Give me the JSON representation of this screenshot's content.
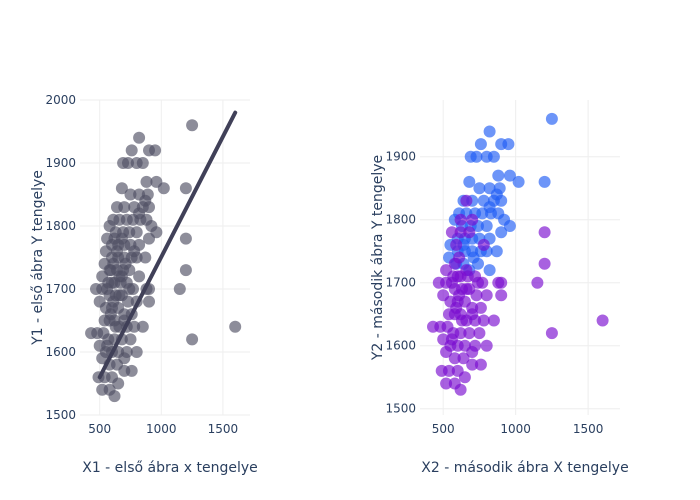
{
  "chart_data": [
    {
      "type": "scatter",
      "xlabel": "X1 - első ábra x tengelye",
      "ylabel": "Y1 - első ábra Y tengelye",
      "xlim": [
        340,
        1720
      ],
      "ylim": [
        1500,
        2000
      ],
      "xticks": [
        500,
        1000,
        1500
      ],
      "yticks": [
        1500,
        1600,
        1700,
        1800,
        1900,
        2000
      ],
      "grid": true,
      "trend_line": {
        "x": [
          500,
          1600
        ],
        "y": [
          1560,
          1980
        ],
        "color": "#404058"
      },
      "series": [
        {
          "color": "#505064",
          "points": [
            [
              1250,
              1960
            ],
            [
              820,
              1940
            ],
            [
              690,
              1900
            ],
            [
              730,
              1900
            ],
            [
              800,
              1900
            ],
            [
              850,
              1900
            ],
            [
              900,
              1920
            ],
            [
              950,
              1920
            ],
            [
              760,
              1920
            ],
            [
              880,
              1870
            ],
            [
              960,
              1870
            ],
            [
              1020,
              1860
            ],
            [
              1200,
              1860
            ],
            [
              680,
              1860
            ],
            [
              750,
              1850
            ],
            [
              820,
              1850
            ],
            [
              890,
              1850
            ],
            [
              870,
              1840
            ],
            [
              640,
              1830
            ],
            [
              700,
              1830
            ],
            [
              780,
              1830
            ],
            [
              850,
              1830
            ],
            [
              900,
              1830
            ],
            [
              820,
              1820
            ],
            [
              610,
              1810
            ],
            [
              660,
              1810
            ],
            [
              720,
              1810
            ],
            [
              770,
              1810
            ],
            [
              830,
              1810
            ],
            [
              880,
              1810
            ],
            [
              920,
              1800
            ],
            [
              580,
              1800
            ],
            [
              630,
              1790
            ],
            [
              690,
              1790
            ],
            [
              740,
              1790
            ],
            [
              800,
              1790
            ],
            [
              960,
              1790
            ],
            [
              1200,
              1780
            ],
            [
              560,
              1780
            ],
            [
              600,
              1770
            ],
            [
              650,
              1770
            ],
            [
              700,
              1770
            ],
            [
              750,
              1770
            ],
            [
              820,
              1770
            ],
            [
              900,
              1780
            ],
            [
              550,
              1760
            ],
            [
              600,
              1750
            ],
            [
              650,
              1750
            ],
            [
              700,
              1750
            ],
            [
              760,
              1750
            ],
            [
              800,
              1750
            ],
            [
              870,
              1750
            ],
            [
              540,
              1740
            ],
            [
              590,
              1730
            ],
            [
              640,
              1730
            ],
            [
              690,
              1730
            ],
            [
              740,
              1730
            ],
            [
              820,
              1720
            ],
            [
              1200,
              1730
            ],
            [
              520,
              1720
            ],
            [
              570,
              1710
            ],
            [
              620,
              1710
            ],
            [
              670,
              1710
            ],
            [
              720,
              1710
            ],
            [
              770,
              1700
            ],
            [
              880,
              1700
            ],
            [
              1150,
              1700
            ],
            [
              470,
              1700
            ],
            [
              520,
              1700
            ],
            [
              580,
              1690
            ],
            [
              630,
              1690
            ],
            [
              680,
              1690
            ],
            [
              730,
              1680
            ],
            [
              800,
              1680
            ],
            [
              900,
              1680
            ],
            [
              500,
              1680
            ],
            [
              550,
              1670
            ],
            [
              600,
              1670
            ],
            [
              650,
              1670
            ],
            [
              700,
              1660
            ],
            [
              760,
              1660
            ],
            [
              540,
              1650
            ],
            [
              580,
              1650
            ],
            [
              620,
              1650
            ],
            [
              660,
              1640
            ],
            [
              720,
              1640
            ],
            [
              780,
              1640
            ],
            [
              850,
              1640
            ],
            [
              1600,
              1640
            ],
            [
              430,
              1630
            ],
            [
              480,
              1630
            ],
            [
              530,
              1630
            ],
            [
              570,
              1620
            ],
            [
              620,
              1620
            ],
            [
              680,
              1620
            ],
            [
              750,
              1620
            ],
            [
              1250,
              1620
            ],
            [
              500,
              1610
            ],
            [
              550,
              1600
            ],
            [
              600,
              1600
            ],
            [
              650,
              1600
            ],
            [
              720,
              1600
            ],
            [
              800,
              1600
            ],
            [
              520,
              1590
            ],
            [
              580,
              1580
            ],
            [
              640,
              1580
            ],
            [
              700,
              1570
            ],
            [
              760,
              1570
            ],
            [
              490,
              1560
            ],
            [
              540,
              1560
            ],
            [
              600,
              1560
            ],
            [
              650,
              1550
            ],
            [
              520,
              1540
            ],
            [
              580,
              1540
            ],
            [
              620,
              1530
            ],
            [
              700,
              1590
            ],
            [
              900,
              1700
            ],
            [
              560,
              1700
            ],
            [
              610,
              1680
            ],
            [
              660,
              1720
            ],
            [
              710,
              1740
            ],
            [
              600,
              1710
            ],
            [
              640,
              1760
            ],
            [
              680,
              1720
            ],
            [
              590,
              1660
            ],
            [
              630,
              1640
            ],
            [
              560,
              1610
            ],
            [
              680,
              1780
            ],
            [
              740,
              1700
            ],
            [
              780,
              1760
            ],
            [
              610,
              1740
            ],
            [
              660,
              1690
            ],
            [
              700,
              1650
            ],
            [
              580,
              1730
            ],
            [
              620,
              1780
            ]
          ]
        }
      ]
    },
    {
      "type": "scatter",
      "xlabel": "X2 - második ábra X tengelye",
      "ylabel": "Y2 - második ábra Y tengelye",
      "xlim": [
        340,
        1720
      ],
      "ylim": [
        1490,
        1990
      ],
      "xticks": [
        500,
        1000,
        1500
      ],
      "yticks": [
        1500,
        1600,
        1700,
        1800,
        1900
      ],
      "grid": true,
      "series": [
        {
          "color": "#1f5cf5",
          "points": [
            [
              1250,
              1960
            ],
            [
              820,
              1940
            ],
            [
              690,
              1900
            ],
            [
              730,
              1900
            ],
            [
              800,
              1900
            ],
            [
              850,
              1900
            ],
            [
              900,
              1920
            ],
            [
              950,
              1920
            ],
            [
              760,
              1920
            ],
            [
              880,
              1870
            ],
            [
              960,
              1870
            ],
            [
              1020,
              1860
            ],
            [
              1200,
              1860
            ],
            [
              680,
              1860
            ],
            [
              750,
              1850
            ],
            [
              820,
              1850
            ],
            [
              890,
              1850
            ],
            [
              870,
              1840
            ],
            [
              640,
              1830
            ],
            [
              700,
              1830
            ],
            [
              780,
              1830
            ],
            [
              850,
              1830
            ],
            [
              900,
              1830
            ],
            [
              820,
              1820
            ],
            [
              610,
              1810
            ],
            [
              660,
              1810
            ],
            [
              720,
              1810
            ],
            [
              770,
              1810
            ],
            [
              830,
              1810
            ],
            [
              880,
              1810
            ],
            [
              920,
              1800
            ],
            [
              580,
              1800
            ],
            [
              630,
              1790
            ],
            [
              690,
              1790
            ],
            [
              740,
              1790
            ],
            [
              800,
              1790
            ],
            [
              960,
              1790
            ],
            [
              600,
              1770
            ],
            [
              650,
              1770
            ],
            [
              700,
              1770
            ],
            [
              750,
              1770
            ],
            [
              820,
              1770
            ],
            [
              900,
              1780
            ],
            [
              550,
              1760
            ],
            [
              600,
              1750
            ],
            [
              650,
              1750
            ],
            [
              700,
              1750
            ],
            [
              760,
              1750
            ],
            [
              800,
              1750
            ],
            [
              870,
              1750
            ],
            [
              540,
              1740
            ],
            [
              590,
              1730
            ],
            [
              640,
              1730
            ],
            [
              740,
              1730
            ],
            [
              820,
              1720
            ],
            [
              680,
              1720
            ],
            [
              640,
              1760
            ],
            [
              710,
              1740
            ]
          ]
        },
        {
          "color": "#7a0ccf",
          "points": [
            [
              1200,
              1780
            ],
            [
              560,
              1780
            ],
            [
              1200,
              1730
            ],
            [
              520,
              1720
            ],
            [
              570,
              1710
            ],
            [
              620,
              1710
            ],
            [
              670,
              1710
            ],
            [
              720,
              1710
            ],
            [
              770,
              1700
            ],
            [
              880,
              1700
            ],
            [
              1150,
              1700
            ],
            [
              470,
              1700
            ],
            [
              520,
              1700
            ],
            [
              580,
              1690
            ],
            [
              630,
              1690
            ],
            [
              680,
              1690
            ],
            [
              730,
              1680
            ],
            [
              800,
              1680
            ],
            [
              900,
              1680
            ],
            [
              500,
              1680
            ],
            [
              550,
              1670
            ],
            [
              600,
              1670
            ],
            [
              650,
              1670
            ],
            [
              700,
              1660
            ],
            [
              760,
              1660
            ],
            [
              540,
              1650
            ],
            [
              580,
              1650
            ],
            [
              620,
              1650
            ],
            [
              660,
              1640
            ],
            [
              720,
              1640
            ],
            [
              780,
              1640
            ],
            [
              850,
              1640
            ],
            [
              1600,
              1640
            ],
            [
              430,
              1630
            ],
            [
              480,
              1630
            ],
            [
              530,
              1630
            ],
            [
              570,
              1620
            ],
            [
              620,
              1620
            ],
            [
              680,
              1620
            ],
            [
              750,
              1620
            ],
            [
              1250,
              1620
            ],
            [
              500,
              1610
            ],
            [
              550,
              1600
            ],
            [
              600,
              1600
            ],
            [
              650,
              1600
            ],
            [
              720,
              1600
            ],
            [
              800,
              1600
            ],
            [
              520,
              1590
            ],
            [
              580,
              1580
            ],
            [
              640,
              1580
            ],
            [
              700,
              1570
            ],
            [
              760,
              1570
            ],
            [
              490,
              1560
            ],
            [
              540,
              1560
            ],
            [
              600,
              1560
            ],
            [
              650,
              1550
            ],
            [
              520,
              1540
            ],
            [
              580,
              1540
            ],
            [
              620,
              1530
            ],
            [
              700,
              1590
            ],
            [
              900,
              1700
            ],
            [
              560,
              1700
            ],
            [
              610,
              1680
            ],
            [
              660,
              1720
            ],
            [
              600,
              1710
            ],
            [
              590,
              1660
            ],
            [
              630,
              1640
            ],
            [
              560,
              1610
            ],
            [
              680,
              1780
            ],
            [
              740,
              1700
            ],
            [
              780,
              1760
            ],
            [
              610,
              1740
            ],
            [
              660,
              1690
            ],
            [
              700,
              1650
            ],
            [
              580,
              1730
            ],
            [
              620,
              1780
            ],
            [
              660,
              1830
            ],
            [
              700,
              1800
            ],
            [
              620,
              1800
            ],
            [
              590,
              1760
            ]
          ]
        }
      ]
    }
  ]
}
